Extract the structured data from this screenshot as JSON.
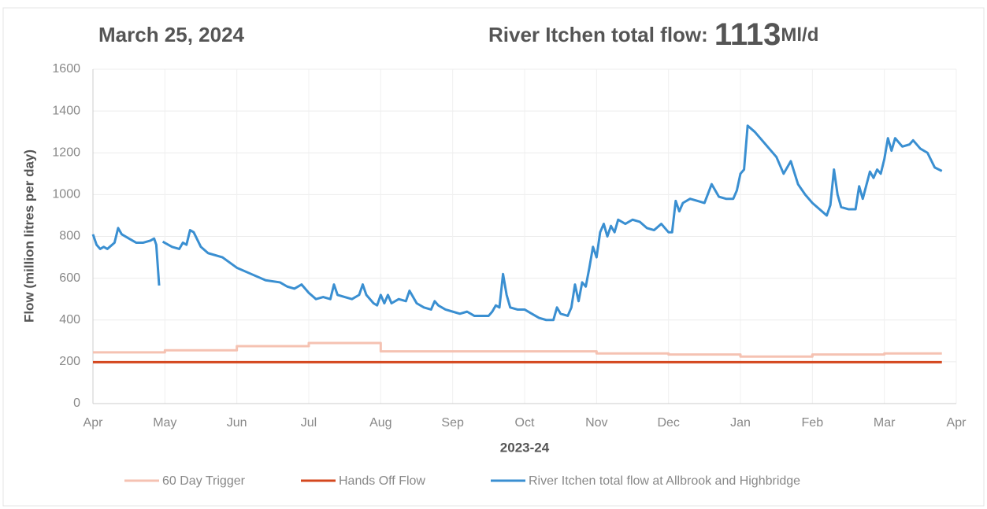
{
  "chart_data": {
    "type": "line",
    "date_label": "March 25, 2024",
    "headline": "River Itchen total flow:",
    "current_value": 1113,
    "current_unit": "Ml/d",
    "y_axis_label": "Flow (million litres per day)",
    "x_axis_label": "2023-24",
    "xlim": [
      0,
      12
    ],
    "xticks": [
      {
        "value": 0,
        "label": "Apr"
      },
      {
        "value": 1,
        "label": "May"
      },
      {
        "value": 2,
        "label": "Jun"
      },
      {
        "value": 3,
        "label": "Jul"
      },
      {
        "value": 4,
        "label": "Aug"
      },
      {
        "value": 5,
        "label": "Sep"
      },
      {
        "value": 6,
        "label": "Oct"
      },
      {
        "value": 7,
        "label": "Nov"
      },
      {
        "value": 8,
        "label": "Dec"
      },
      {
        "value": 9,
        "label": "Jan"
      },
      {
        "value": 10,
        "label": "Feb"
      },
      {
        "value": 11,
        "label": "Mar"
      },
      {
        "value": 12,
        "label": "Apr"
      }
    ],
    "ylim": [
      0,
      1600
    ],
    "yticks": [
      0,
      200,
      400,
      600,
      800,
      1000,
      1200,
      1400,
      1600
    ],
    "grid": true,
    "legend": "bottom",
    "series": [
      {
        "name": "60 Day Trigger",
        "color": "#f5c2b2",
        "x": [
          0,
          1,
          1,
          2,
          2,
          3,
          3,
          4,
          4,
          7,
          7,
          8,
          8,
          9,
          9,
          10,
          10,
          11,
          11,
          11.8
        ],
        "values": [
          245,
          245,
          255,
          255,
          275,
          275,
          290,
          290,
          250,
          250,
          240,
          240,
          235,
          235,
          225,
          225,
          235,
          235,
          240,
          240
        ]
      },
      {
        "name": "Hands Off Flow",
        "color": "#d4481f",
        "x": [
          0,
          11.8
        ],
        "values": [
          198,
          198
        ]
      },
      {
        "name": "River Itchen total flow at Allbrook and Highbridge",
        "color": "#3a8fd1",
        "x": [
          0,
          0.05,
          0.1,
          0.15,
          0.2,
          0.3,
          0.35,
          0.4,
          0.5,
          0.6,
          0.7,
          0.8,
          0.85,
          0.88,
          0.92,
          null,
          0.97,
          1.1,
          1.2,
          1.25,
          1.3,
          1.35,
          1.4,
          1.5,
          1.6,
          1.8,
          2.0,
          2.2,
          2.4,
          2.6,
          2.7,
          2.8,
          2.9,
          3.0,
          3.1,
          3.2,
          3.3,
          3.35,
          3.4,
          3.5,
          3.6,
          3.7,
          3.75,
          3.8,
          3.9,
          3.95,
          4.0,
          4.05,
          4.1,
          4.15,
          4.25,
          4.35,
          4.4,
          4.5,
          4.6,
          4.7,
          4.75,
          4.8,
          4.9,
          5.0,
          5.1,
          5.2,
          5.3,
          5.4,
          5.5,
          5.55,
          5.6,
          5.65,
          5.7,
          5.75,
          5.8,
          5.9,
          6.0,
          6.1,
          6.2,
          6.3,
          6.4,
          6.45,
          6.5,
          6.6,
          6.65,
          6.7,
          6.75,
          6.8,
          6.85,
          6.9,
          6.95,
          7.0,
          7.05,
          7.1,
          7.15,
          7.2,
          7.25,
          7.3,
          7.4,
          7.5,
          7.6,
          7.7,
          7.8,
          7.9,
          8.0,
          8.05,
          8.1,
          8.15,
          8.2,
          8.3,
          8.4,
          8.5,
          8.6,
          8.7,
          8.8,
          8.9,
          8.95,
          9.0,
          9.05,
          9.1,
          9.2,
          9.35,
          9.5,
          9.6,
          9.7,
          9.8,
          9.9,
          10.0,
          10.1,
          10.2,
          10.25,
          10.3,
          10.35,
          10.4,
          10.5,
          10.6,
          10.65,
          10.7,
          10.8,
          10.85,
          10.9,
          10.95,
          11.0,
          11.05,
          11.1,
          11.15,
          11.25,
          11.35,
          11.4,
          11.5,
          11.6,
          11.7,
          11.8
        ],
        "values": [
          810,
          760,
          740,
          750,
          740,
          770,
          840,
          810,
          790,
          770,
          770,
          780,
          790,
          760,
          565,
          null,
          775,
          750,
          740,
          770,
          760,
          830,
          820,
          750,
          720,
          700,
          650,
          620,
          590,
          580,
          560,
          550,
          570,
          530,
          500,
          510,
          500,
          570,
          520,
          510,
          500,
          520,
          570,
          520,
          480,
          470,
          520,
          480,
          520,
          480,
          500,
          490,
          540,
          480,
          460,
          450,
          490,
          470,
          450,
          440,
          430,
          440,
          420,
          420,
          420,
          440,
          470,
          460,
          620,
          520,
          460,
          450,
          450,
          430,
          410,
          400,
          400,
          460,
          430,
          420,
          460,
          570,
          490,
          580,
          560,
          650,
          750,
          700,
          820,
          860,
          800,
          850,
          820,
          880,
          860,
          880,
          870,
          840,
          830,
          860,
          820,
          820,
          970,
          920,
          960,
          980,
          970,
          960,
          1050,
          990,
          980,
          980,
          1020,
          1100,
          1120,
          1330,
          1300,
          1240,
          1180,
          1100,
          1160,
          1050,
          1000,
          960,
          930,
          900,
          950,
          1120,
          1000,
          940,
          930,
          930,
          1040,
          980,
          1110,
          1080,
          1120,
          1100,
          1170,
          1270,
          1210,
          1270,
          1230,
          1240,
          1260,
          1220,
          1200,
          1130,
          1113
        ]
      }
    ]
  }
}
